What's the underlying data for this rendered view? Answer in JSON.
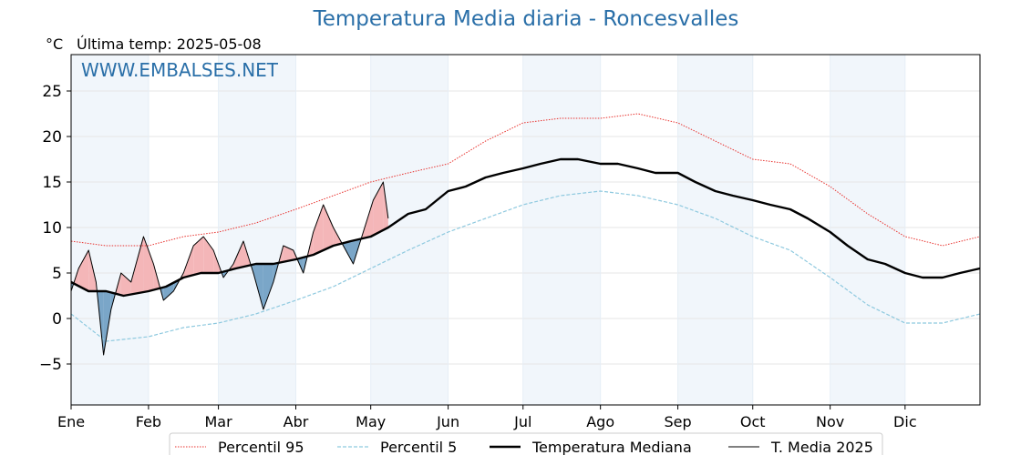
{
  "header": {
    "title": "Temperatura Media diaria - Roncesvalles",
    "unit": "°C",
    "last_temp": "Última temp: 2025-05-08",
    "watermark": "WWW.EMBALSES.NET"
  },
  "colors": {
    "title": "#2a6fa8",
    "p95": "#e8332f",
    "p5": "#8ec9df",
    "median": "#000000",
    "t2025": "#000000",
    "above_fill": "#f4b6b8",
    "below_fill": "#7aa6c8",
    "band_shade": "#f1f6fb"
  },
  "chart_data": {
    "type": "line",
    "xlabel": "",
    "ylabel": "°C",
    "x_range_days": [
      1,
      365
    ],
    "ylim": [
      -9.5,
      29
    ],
    "yticks": [
      -5,
      0,
      5,
      10,
      15,
      20,
      25
    ],
    "ytick_labels": [
      "−5",
      "0",
      "5",
      "10",
      "15",
      "20",
      "25"
    ],
    "month_labels": [
      "Ene",
      "Feb",
      "Mar",
      "Abr",
      "May",
      "Jun",
      "Jul",
      "Ago",
      "Sep",
      "Oct",
      "Nov",
      "Dic"
    ],
    "month_start_days": [
      1,
      32,
      60,
      91,
      121,
      152,
      182,
      213,
      244,
      274,
      305,
      335
    ],
    "grid": true,
    "legend_position": "bottom",
    "legend": [
      "Percentil 95",
      "Percentil 5",
      "Temperatura Mediana",
      "T. Media 2025"
    ],
    "series": [
      {
        "name": "Percentil 95",
        "style": "dotted-red",
        "x": [
          1,
          15,
          32,
          46,
          60,
          75,
          91,
          106,
          121,
          136,
          152,
          167,
          182,
          197,
          213,
          228,
          244,
          259,
          274,
          289,
          305,
          320,
          335,
          350,
          365
        ],
        "y": [
          8.5,
          8.0,
          8.0,
          9.0,
          9.5,
          10.5,
          12.0,
          13.5,
          15.0,
          16.0,
          17.0,
          19.5,
          21.5,
          22.0,
          22.0,
          22.5,
          21.5,
          19.5,
          17.5,
          17.0,
          14.5,
          11.5,
          9.0,
          8.0,
          9.0
        ]
      },
      {
        "name": "Percentil 5",
        "style": "dashed-lightblue",
        "x": [
          1,
          15,
          32,
          46,
          60,
          75,
          91,
          106,
          121,
          136,
          152,
          167,
          182,
          197,
          213,
          228,
          244,
          259,
          274,
          289,
          305,
          320,
          335,
          350,
          365
        ],
        "y": [
          0.5,
          -2.5,
          -2.0,
          -1.0,
          -0.5,
          0.5,
          2.0,
          3.5,
          5.5,
          7.5,
          9.5,
          11.0,
          12.5,
          13.5,
          14.0,
          13.5,
          12.5,
          11.0,
          9.0,
          7.5,
          4.5,
          1.5,
          -0.5,
          -0.5,
          0.5
        ]
      },
      {
        "name": "Temperatura Mediana",
        "style": "solid-black-thick",
        "x": [
          1,
          8,
          15,
          22,
          32,
          39,
          46,
          53,
          60,
          67,
          75,
          82,
          91,
          98,
          106,
          113,
          121,
          128,
          136,
          143,
          152,
          159,
          167,
          174,
          182,
          189,
          197,
          204,
          213,
          220,
          228,
          235,
          244,
          251,
          259,
          266,
          274,
          281,
          289,
          296,
          305,
          312,
          320,
          327,
          335,
          342,
          350,
          357,
          365
        ],
        "y": [
          4.0,
          3.0,
          3.0,
          2.5,
          3.0,
          3.5,
          4.5,
          5.0,
          5.0,
          5.5,
          6.0,
          6.0,
          6.5,
          7.0,
          8.0,
          8.5,
          9.0,
          10.0,
          11.5,
          12.0,
          14.0,
          14.5,
          15.5,
          16.0,
          16.5,
          17.0,
          17.5,
          17.5,
          17.0,
          17.0,
          16.5,
          16.0,
          16.0,
          15.0,
          14.0,
          13.5,
          13.0,
          12.5,
          12.0,
          11.0,
          9.5,
          8.0,
          6.5,
          6.0,
          5.0,
          4.5,
          4.5,
          5.0,
          5.5
        ]
      },
      {
        "name": "T. Media 2025",
        "style": "solid-black-thin",
        "x": [
          1,
          4,
          8,
          11,
          14,
          17,
          21,
          25,
          30,
          34,
          38,
          42,
          46,
          50,
          54,
          58,
          62,
          66,
          70,
          74,
          78,
          82,
          86,
          90,
          94,
          98,
          102,
          106,
          110,
          114,
          118,
          122,
          126,
          128
        ],
        "y": [
          3.0,
          5.5,
          7.5,
          4.0,
          -4.0,
          1.0,
          5.0,
          4.0,
          9.0,
          6.0,
          2.0,
          3.0,
          5.0,
          8.0,
          9.0,
          7.5,
          4.5,
          6.0,
          8.5,
          5.0,
          1.0,
          4.0,
          8.0,
          7.5,
          5.0,
          9.5,
          12.5,
          10.0,
          8.0,
          6.0,
          9.5,
          13.0,
          15.0,
          11.0
        ]
      }
    ]
  },
  "legend": {
    "items": [
      "Percentil 95",
      "Percentil 5",
      "Temperatura Mediana",
      "T. Media 2025"
    ]
  }
}
